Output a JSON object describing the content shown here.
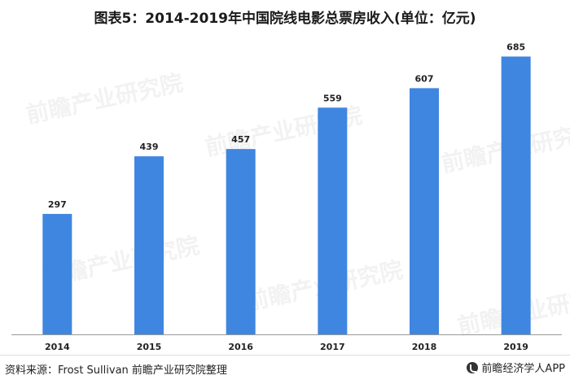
{
  "title": "图表5：2014-2019年中国院线电影总票房收入(单位：亿元)",
  "source": "资料来源：Frost Sullivan 前瞻产业研究院整理",
  "logo_text": "前瞻经济学人APP",
  "watermark_text": "前瞻产业研究院",
  "colors": {
    "bar": "#3f86e0",
    "axis": "#999999",
    "text": "#222222"
  },
  "chart_data": {
    "type": "bar",
    "categories": [
      "2014",
      "2015",
      "2016",
      "2017",
      "2018",
      "2019"
    ],
    "values": [
      297,
      439,
      457,
      559,
      607,
      685
    ],
    "title": "图表5：2014-2019年中国院线电影总票房收入(单位：亿元)",
    "xlabel": "",
    "ylabel": "",
    "ylim": [
      0,
      700
    ],
    "grid": false,
    "data_labels": true
  }
}
